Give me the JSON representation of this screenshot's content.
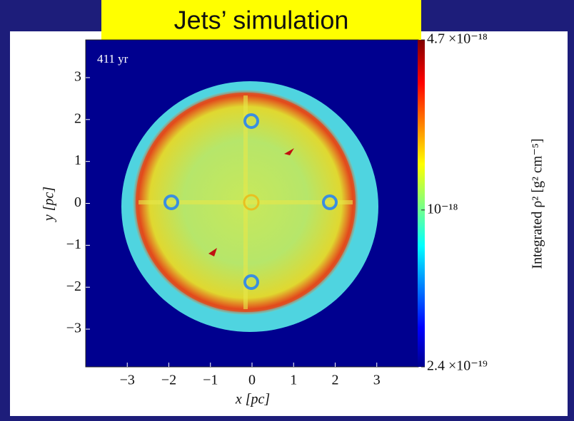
{
  "title": "Jets’ simulation",
  "chart_data": {
    "type": "heatmap",
    "annotation": "411 yr",
    "xlabel": "x [pc]",
    "ylabel": "y [pc]",
    "xlim": [
      -4,
      4
    ],
    "ylim": [
      -3.9,
      3.9
    ],
    "xticks": [
      {
        "value": -3,
        "label": "−3"
      },
      {
        "value": -2,
        "label": "−2"
      },
      {
        "value": -1,
        "label": "−1"
      },
      0,
      1,
      2,
      3
    ],
    "yticks": [
      {
        "value": -3,
        "label": "−3"
      },
      {
        "value": -2,
        "label": "−2"
      },
      {
        "value": -1,
        "label": "−1"
      },
      0,
      1,
      2,
      3
    ],
    "colorbar": {
      "label": "Integrated ρ² [g² cm⁻⁵]",
      "log": true,
      "lim": [
        2.4e-19,
        4.7e-18
      ],
      "ticks": [
        {
          "value": 4.7e-18,
          "label": "4.7 ×10⁻¹⁸"
        },
        {
          "value": 1e-18,
          "label": "10⁻¹⁸"
        },
        {
          "value": 2.4e-19,
          "label": "2.4 ×10⁻¹⁹"
        }
      ]
    }
  }
}
